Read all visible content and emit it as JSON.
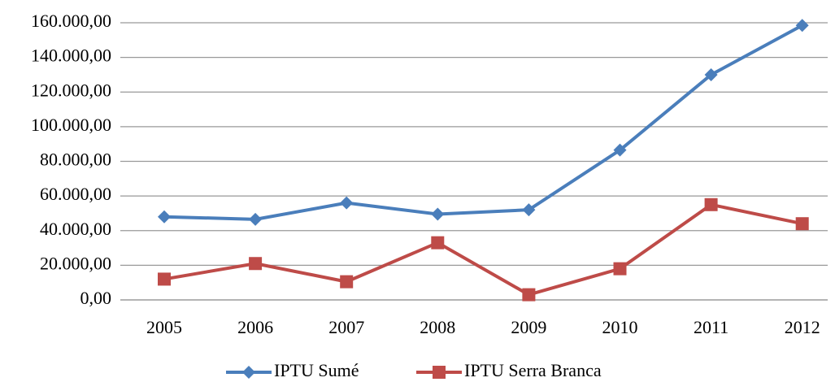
{
  "chart_data": {
    "type": "line",
    "categories": [
      "2005",
      "2006",
      "2007",
      "2008",
      "2009",
      "2010",
      "2011",
      "2012"
    ],
    "series": [
      {
        "name": "IPTU Sumé",
        "color": "#4a7ebb",
        "marker": "diamond",
        "values": [
          48000,
          46500,
          56000,
          49500,
          52000,
          86500,
          130000,
          158500
        ]
      },
      {
        "name": "IPTU Serra Branca",
        "color": "#be4b48",
        "marker": "square",
        "values": [
          12000,
          21000,
          10500,
          33000,
          3000,
          18000,
          55000,
          44000
        ]
      }
    ],
    "ylim": [
      0,
      160000
    ],
    "yticks": [
      {
        "value": 0,
        "label": "0,00"
      },
      {
        "value": 20000,
        "label": "20.000,00"
      },
      {
        "value": 40000,
        "label": "40.000,00"
      },
      {
        "value": 60000,
        "label": "60.000,00"
      },
      {
        "value": 80000,
        "label": "80.000,00"
      },
      {
        "value": 100000,
        "label": "100.000,00"
      },
      {
        "value": 120000,
        "label": "120.000,00"
      },
      {
        "value": 140000,
        "label": "140.000,00"
      },
      {
        "value": 160000,
        "label": "160.000,00"
      }
    ],
    "grid": true,
    "legend": "bottom"
  }
}
